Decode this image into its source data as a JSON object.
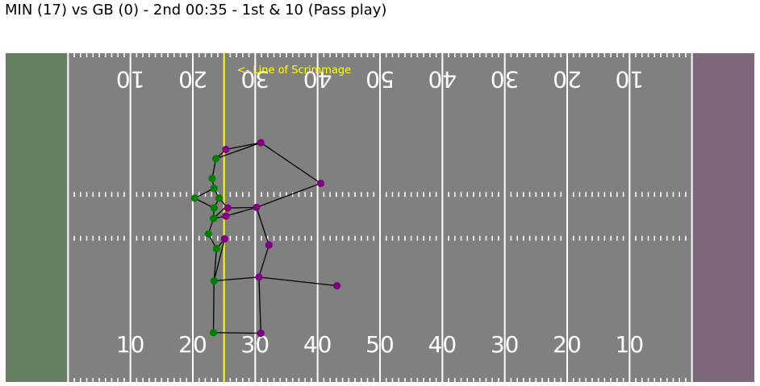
{
  "title": "MIN (17) vs GB (0) - 2nd 00:35 - 1st & 10 (Pass play)",
  "field": {
    "field_color": "#808080",
    "left_endzone_color": "#658162",
    "right_endzone_color": "#7e687e",
    "line_color": "#ffffff",
    "scrimmage_color": "#ffff00",
    "scrimmage_label": "<- Line of Scrimmage",
    "scrimmage_yardline": 35,
    "bottom_numbers": [
      "10",
      "20",
      "30",
      "40",
      "50",
      "40",
      "30",
      "20",
      "10"
    ],
    "top_numbers": [
      "10",
      "20",
      "30",
      "40",
      "50",
      "40",
      "30",
      "20",
      "10"
    ]
  },
  "chart_data": {
    "type": "scatter",
    "title": "MIN (17) vs GB (0) - 2nd 00:35 - 1st & 10 (Pass play)",
    "xlabel": "",
    "ylabel": "",
    "xlim": [
      0,
      120
    ],
    "ylim": [
      0,
      53.3
    ],
    "grid": false,
    "x_units": "yards from left end line (end zones included)",
    "y_units": "yards from bottom sideline",
    "series": [
      {
        "color": "#008000",
        "points": [
          {
            "x": 33.7,
            "y": 36.2
          },
          {
            "x": 33.1,
            "y": 33.0
          },
          {
            "x": 33.4,
            "y": 31.4
          },
          {
            "x": 30.3,
            "y": 29.8
          },
          {
            "x": 34.2,
            "y": 29.8
          },
          {
            "x": 33.4,
            "y": 28.2
          },
          {
            "x": 33.3,
            "y": 26.5
          },
          {
            "x": 32.5,
            "y": 24.0
          },
          {
            "x": 33.8,
            "y": 21.6
          },
          {
            "x": 33.4,
            "y": 16.4
          },
          {
            "x": 33.3,
            "y": 8.0
          }
        ]
      },
      {
        "color": "#800080",
        "points": [
          {
            "x": 35.3,
            "y": 37.7
          },
          {
            "x": 40.9,
            "y": 38.8
          },
          {
            "x": 50.5,
            "y": 32.2
          },
          {
            "x": 35.6,
            "y": 28.2
          },
          {
            "x": 40.2,
            "y": 28.3
          },
          {
            "x": 35.3,
            "y": 26.9
          },
          {
            "x": 35.1,
            "y": 23.2
          },
          {
            "x": 42.2,
            "y": 22.2
          },
          {
            "x": 40.6,
            "y": 17.0
          },
          {
            "x": 53.1,
            "y": 15.6
          },
          {
            "x": 40.9,
            "y": 7.9
          }
        ]
      }
    ],
    "links": [
      [
        [
          33.7,
          36.2
        ],
        [
          35.3,
          37.7
        ]
      ],
      [
        [
          33.7,
          36.2
        ],
        [
          40.9,
          38.8
        ]
      ],
      [
        [
          35.3,
          37.7
        ],
        [
          40.9,
          38.8
        ]
      ],
      [
        [
          40.9,
          38.8
        ],
        [
          50.5,
          32.2
        ]
      ],
      [
        [
          33.7,
          36.2
        ],
        [
          33.1,
          33.0
        ]
      ],
      [
        [
          33.1,
          33.0
        ],
        [
          33.4,
          31.4
        ]
      ],
      [
        [
          33.4,
          31.4
        ],
        [
          30.3,
          29.8
        ]
      ],
      [
        [
          33.4,
          31.4
        ],
        [
          34.2,
          29.8
        ]
      ],
      [
        [
          30.3,
          29.8
        ],
        [
          33.4,
          28.2
        ]
      ],
      [
        [
          34.2,
          29.8
        ],
        [
          35.6,
          28.2
        ]
      ],
      [
        [
          34.2,
          29.8
        ],
        [
          33.4,
          28.2
        ]
      ],
      [
        [
          33.4,
          28.2
        ],
        [
          33.3,
          26.5
        ]
      ],
      [
        [
          35.6,
          28.2
        ],
        [
          40.2,
          28.3
        ]
      ],
      [
        [
          40.2,
          28.3
        ],
        [
          50.5,
          32.2
        ]
      ],
      [
        [
          33.3,
          26.5
        ],
        [
          35.1,
          28.2
        ]
      ],
      [
        [
          33.3,
          26.5
        ],
        [
          35.3,
          26.9
        ]
      ],
      [
        [
          35.3,
          26.9
        ],
        [
          40.2,
          28.3
        ]
      ],
      [
        [
          33.3,
          26.5
        ],
        [
          32.5,
          24.0
        ]
      ],
      [
        [
          32.5,
          24.0
        ],
        [
          33.8,
          21.6
        ]
      ],
      [
        [
          33.8,
          21.6
        ],
        [
          35.1,
          23.2
        ]
      ],
      [
        [
          40.2,
          28.3
        ],
        [
          42.2,
          22.2
        ]
      ],
      [
        [
          33.8,
          21.6
        ],
        [
          33.4,
          16.4
        ]
      ],
      [
        [
          35.1,
          23.2
        ],
        [
          33.4,
          16.4
        ]
      ],
      [
        [
          42.2,
          22.2
        ],
        [
          40.6,
          17.0
        ]
      ],
      [
        [
          33.4,
          16.4
        ],
        [
          40.6,
          17.0
        ]
      ],
      [
        [
          40.6,
          17.0
        ],
        [
          53.1,
          15.6
        ]
      ],
      [
        [
          33.4,
          16.4
        ],
        [
          33.3,
          8.0
        ]
      ],
      [
        [
          40.6,
          17.0
        ],
        [
          40.9,
          7.9
        ]
      ],
      [
        [
          33.3,
          8.0
        ],
        [
          40.9,
          7.9
        ]
      ]
    ]
  }
}
